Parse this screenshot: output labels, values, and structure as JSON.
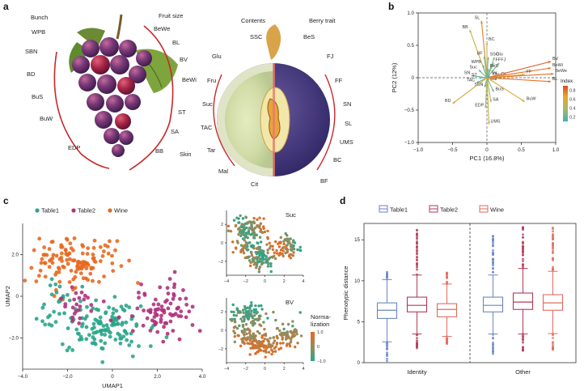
{
  "panels": {
    "a": "a",
    "b": "b",
    "c": "c",
    "d": "d"
  },
  "panel_a": {
    "grape_labels": {
      "bunch": "Bunch",
      "fruit_size": "Fruit size",
      "left": [
        "WPB",
        "SBN",
        "BD",
        "BuS",
        "BuW",
        "EDP"
      ],
      "right": [
        "BeWe",
        "BL",
        "BV",
        "BeWi",
        "ST",
        "SA",
        "BB",
        "Skin"
      ]
    },
    "berry_labels": {
      "contents": "Contents",
      "berry_trait": "Berry trait",
      "left": [
        "SSC",
        "Glu",
        "Fru",
        "Suc",
        "TAC",
        "Tar",
        "Mal",
        "Cit"
      ],
      "right": [
        "BeS",
        "FJ",
        "FF",
        "SN",
        "SL",
        "UMS",
        "BC",
        "BF"
      ]
    }
  },
  "colors": {
    "table1": "#2aa58a",
    "table2": "#b0317c",
    "wine": "#e8691f",
    "grape_dark": "#4a2a6a",
    "arc_red": "#c8282a"
  },
  "chart_data": [
    {
      "panel": "b",
      "type": "scatter",
      "subtype": "pca-biplot",
      "xlabel": "PC1 (16.8%)",
      "ylabel": "PC2 (12%)",
      "xlim": [
        -1.0,
        1.0
      ],
      "ylim": [
        -1.0,
        1.0
      ],
      "xticks": [
        "−1.0",
        "−0.5",
        "0",
        "0.5",
        "1.0"
      ],
      "yticks": [
        "1.0",
        "0.5",
        "0",
        "−0.5",
        "−1.0"
      ],
      "colorbar": {
        "title": "Index",
        "ticks": [
          "0.8",
          "0.6",
          "0.4",
          "0.2"
        ]
      },
      "loadings": [
        {
          "label": "SL",
          "x": -0.08,
          "y": 0.88,
          "index": 0.75
        },
        {
          "label": "BB",
          "x": -0.25,
          "y": 0.74,
          "index": 0.55
        },
        {
          "label": "BC",
          "x": 0.0,
          "y": 0.55,
          "index": 0.45
        },
        {
          "label": "BF",
          "x": -0.04,
          "y": 0.33,
          "index": 0.3
        },
        {
          "label": "SSC",
          "x": 0.02,
          "y": 0.32,
          "index": 0.3
        },
        {
          "label": "Glu",
          "x": 0.11,
          "y": 0.32,
          "index": 0.3
        },
        {
          "label": "WPB",
          "x": -0.06,
          "y": 0.2,
          "index": 0.25
        },
        {
          "label": "FF",
          "x": 0.1,
          "y": 0.23,
          "index": 0.25
        },
        {
          "label": "FJ",
          "x": 0.18,
          "y": 0.23,
          "index": 0.25
        },
        {
          "label": "BeS",
          "x": 0.02,
          "y": 0.14,
          "index": 0.2
        },
        {
          "label": "Suc",
          "x": -0.12,
          "y": 0.12,
          "index": 0.2
        },
        {
          "label": "SN",
          "x": -0.22,
          "y": 0.03,
          "index": 0.2
        },
        {
          "label": "ST",
          "x": -0.12,
          "y": 0.0,
          "index": 0.2
        },
        {
          "label": "Tar",
          "x": 0.04,
          "y": 0.03,
          "index": 0.15
        },
        {
          "label": "Fru",
          "x": 0.06,
          "y": 0.01,
          "index": 0.15
        },
        {
          "label": "Cit",
          "x": 0.18,
          "y": 0.01,
          "index": 0.15
        },
        {
          "label": "TAC",
          "x": -0.15,
          "y": -0.08,
          "index": 0.2
        },
        {
          "label": "Mal",
          "x": 0.02,
          "y": -0.06,
          "index": 0.15
        },
        {
          "label": "SBN",
          "x": -0.03,
          "y": -0.15,
          "index": 0.2
        },
        {
          "label": "BuS",
          "x": 0.1,
          "y": -0.22,
          "index": 0.25
        },
        {
          "label": "BV",
          "x": 0.93,
          "y": 0.25,
          "index": 0.85
        },
        {
          "label": "BeWi",
          "x": 0.93,
          "y": 0.15,
          "index": 0.8
        },
        {
          "label": "BeWe",
          "x": 0.97,
          "y": 0.06,
          "index": 0.8
        },
        {
          "label": "FF",
          "x": 0.55,
          "y": 0.05,
          "index": 0.6
        },
        {
          "label": "BL",
          "x": 0.93,
          "y": -0.06,
          "index": 0.8
        },
        {
          "label": "BuW",
          "x": 0.55,
          "y": -0.37,
          "index": 0.6
        },
        {
          "label": "BD",
          "x": -0.5,
          "y": -0.4,
          "index": 0.55
        },
        {
          "label": "SA",
          "x": 0.06,
          "y": -0.38,
          "index": 0.45
        },
        {
          "label": "EDP",
          "x": -0.02,
          "y": -0.47,
          "index": 0.4
        },
        {
          "label": "UMS",
          "x": 0.03,
          "y": -0.72,
          "index": 0.5
        }
      ]
    },
    {
      "panel": "c",
      "type": "scatter",
      "subtype": "umap",
      "xlabel": "UMAP1",
      "ylabel": "UMAP2",
      "xlim": [
        -4.0,
        4.0
      ],
      "ylim": [
        -3.5,
        3.5
      ],
      "xticks": [
        "−4.0",
        "−2.0",
        "0",
        "2.0",
        "4.0"
      ],
      "yticks": [
        "2.0",
        "0",
        "−2.0"
      ],
      "legend": [
        "Table1",
        "Table2",
        "Wine"
      ],
      "legend_position": "top-left",
      "clusters": [
        {
          "series": "Wine",
          "cx": -1.7,
          "cy": 1.6,
          "sx": 1.3,
          "sy": 0.9,
          "n": 130
        },
        {
          "series": "Table1",
          "cx": -0.4,
          "cy": -1.5,
          "sx": 1.3,
          "sy": 0.9,
          "n": 120
        },
        {
          "series": "Table1",
          "cx": -2.4,
          "cy": -0.5,
          "sx": 0.8,
          "sy": 0.8,
          "n": 30
        },
        {
          "series": "Table2",
          "cx": 2.4,
          "cy": -0.6,
          "sx": 1.0,
          "sy": 1.0,
          "n": 80
        },
        {
          "series": "Table2",
          "cx": -1.2,
          "cy": -0.3,
          "sx": 0.9,
          "sy": 0.7,
          "n": 25
        }
      ],
      "insets": [
        {
          "title": "Suc"
        },
        {
          "title": "BV"
        }
      ],
      "inset_xticks": [
        "−4",
        "−2",
        "0",
        "2",
        "4"
      ],
      "inset_yticks": [
        "2",
        "0",
        "−2"
      ],
      "colorbar": {
        "title_line1": "Norma-",
        "title_line2": "lization",
        "ticks": [
          "1.0",
          "0",
          "−1.0"
        ]
      }
    },
    {
      "panel": "d",
      "type": "box",
      "ylabel": "Phenotypic distance",
      "ylim": [
        0,
        17
      ],
      "yticks": [
        "15",
        "10",
        "5",
        "0"
      ],
      "categories": [
        "Identity",
        "Other"
      ],
      "legend": [
        "Table1",
        "Table2",
        "Wine"
      ],
      "legend_position": "top",
      "series": [
        {
          "name": "Table1",
          "color": "#6a86c0",
          "boxes": [
            {
              "group": "Identity",
              "min": 0.2,
              "q1": 5.4,
              "median": 6.4,
              "q3": 7.3,
              "max": 11.2
            },
            {
              "group": "Other",
              "min": 0.8,
              "q1": 6.2,
              "median": 7.0,
              "q3": 8.0,
              "max": 15.5
            }
          ]
        },
        {
          "name": "Table2",
          "color": "#b23a57",
          "boxes": [
            {
              "group": "Identity",
              "min": 1.5,
              "q1": 6.2,
              "median": 7.0,
              "q3": 8.0,
              "max": 16.4
            },
            {
              "group": "Other",
              "min": 1.4,
              "q1": 6.5,
              "median": 7.4,
              "q3": 8.5,
              "max": 16.7
            }
          ]
        },
        {
          "name": "Wine",
          "color": "#e06a5e",
          "boxes": [
            {
              "group": "Identity",
              "min": 2.3,
              "q1": 5.6,
              "median": 6.5,
              "q3": 7.2,
              "max": 11.0
            },
            {
              "group": "Other",
              "min": 1.5,
              "q1": 6.4,
              "median": 7.3,
              "q3": 8.3,
              "max": 16.7
            }
          ]
        }
      ]
    }
  ]
}
